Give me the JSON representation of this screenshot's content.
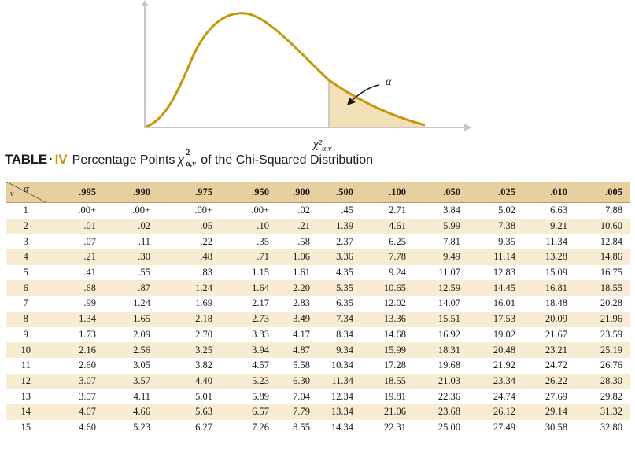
{
  "figure": {
    "alpha_label": "α",
    "chi_label": "χ²",
    "chi_sub": "α,ν",
    "curve_color": "#c8960a",
    "shade_color": "#f3e0b8"
  },
  "title": {
    "table": "TABLE",
    "dot": "·",
    "number": "IV",
    "prefix": "Percentage Points",
    "symbol": "χ",
    "sup": "2",
    "sub": "α,ν",
    "suffix": "of the Chi-Squared Distribution"
  },
  "table": {
    "corner_alpha": "α",
    "corner_nu": "ν",
    "columns": [
      ".995",
      ".990",
      ".975",
      ".950",
      ".900",
      ".500",
      ".100",
      ".050",
      ".025",
      ".010",
      ".005"
    ],
    "rows": [
      {
        "v": "1",
        "values": [
          ".00+",
          ".00+",
          ".00+",
          ".00+",
          ".02",
          ".45",
          "2.71",
          "3.84",
          "5.02",
          "6.63",
          "7.88"
        ]
      },
      {
        "v": "2",
        "values": [
          ".01",
          ".02",
          ".05",
          ".10",
          ".21",
          "1.39",
          "4.61",
          "5.99",
          "7.38",
          "9.21",
          "10.60"
        ]
      },
      {
        "v": "3",
        "values": [
          ".07",
          ".11",
          ".22",
          ".35",
          ".58",
          "2.37",
          "6.25",
          "7.81",
          "9.35",
          "11.34",
          "12.84"
        ]
      },
      {
        "v": "4",
        "values": [
          ".21",
          ".30",
          ".48",
          ".71",
          "1.06",
          "3.36",
          "7.78",
          "9.49",
          "11.14",
          "13.28",
          "14.86"
        ]
      },
      {
        "v": "5",
        "values": [
          ".41",
          ".55",
          ".83",
          "1.15",
          "1.61",
          "4.35",
          "9.24",
          "11.07",
          "12.83",
          "15.09",
          "16.75"
        ]
      },
      {
        "v": "6",
        "values": [
          ".68",
          ".87",
          "1.24",
          "1.64",
          "2.20",
          "5.35",
          "10.65",
          "12.59",
          "14.45",
          "16.81",
          "18.55"
        ]
      },
      {
        "v": "7",
        "values": [
          ".99",
          "1.24",
          "1.69",
          "2.17",
          "2.83",
          "6.35",
          "12.02",
          "14.07",
          "16.01",
          "18.48",
          "20.28"
        ]
      },
      {
        "v": "8",
        "values": [
          "1.34",
          "1.65",
          "2.18",
          "2.73",
          "3.49",
          "7.34",
          "13.36",
          "15.51",
          "17.53",
          "20.09",
          "21.96"
        ]
      },
      {
        "v": "9",
        "values": [
          "1.73",
          "2.09",
          "2.70",
          "3.33",
          "4.17",
          "8.34",
          "14.68",
          "16.92",
          "19.02",
          "21.67",
          "23.59"
        ]
      },
      {
        "v": "10",
        "values": [
          "2.16",
          "2.56",
          "3.25",
          "3.94",
          "4.87",
          "9.34",
          "15.99",
          "18.31",
          "20.48",
          "23.21",
          "25.19"
        ]
      },
      {
        "v": "11",
        "values": [
          "2.60",
          "3.05",
          "3.82",
          "4.57",
          "5.58",
          "10.34",
          "17.28",
          "19.68",
          "21.92",
          "24.72",
          "26.76"
        ]
      },
      {
        "v": "12",
        "values": [
          "3.07",
          "3.57",
          "4.40",
          "5.23",
          "6.30",
          "11.34",
          "18.55",
          "21.03",
          "23.34",
          "26.22",
          "28.30"
        ]
      },
      {
        "v": "13",
        "values": [
          "3.57",
          "4.11",
          "5.01",
          "5.89",
          "7.04",
          "12.34",
          "19.81",
          "22.36",
          "24.74",
          "27.69",
          "29.82"
        ]
      },
      {
        "v": "14",
        "values": [
          "4.07",
          "4.66",
          "5.63",
          "6.57",
          "7.79",
          "13.34",
          "21.06",
          "23.68",
          "26.12",
          "29.14",
          "31.32"
        ]
      },
      {
        "v": "15",
        "values": [
          "4.60",
          "5.23",
          "6.27",
          "7.26",
          "8.55",
          "14.34",
          "22.31",
          "25.00",
          "27.49",
          "30.58",
          "32.80"
        ]
      }
    ]
  }
}
